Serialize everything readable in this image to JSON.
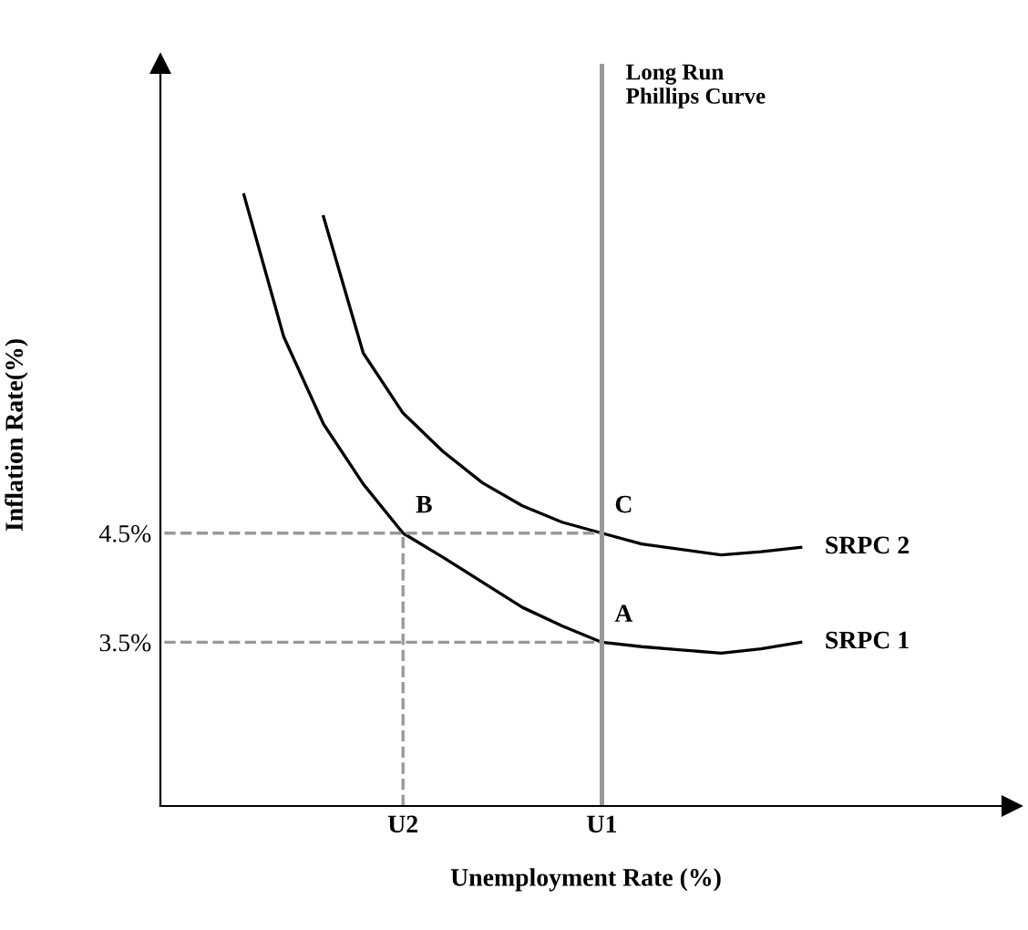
{
  "chart_data": {
    "type": "line",
    "xlabel": "Unemployment Rate (%)",
    "ylabel": "Inflation Rate(%)",
    "categories": [
      null,
      null,
      null,
      null,
      null,
      null,
      "U2",
      null,
      null,
      null,
      null,
      "U1",
      null,
      null,
      null,
      null,
      null,
      null,
      null,
      null,
      null,
      null
    ],
    "ylim": [
      2,
      8.8
    ],
    "yticks": [
      {
        "value": 3.5,
        "label": "3.5%"
      },
      {
        "value": 4.5,
        "label": "4.5%"
      }
    ],
    "grid": false,
    "legend": false,
    "series": [
      {
        "name": "SRPC 1",
        "color": "#000000",
        "line_style": "solid",
        "values": [
          null,
          null,
          7.6,
          6.3,
          5.5,
          4.95,
          4.5,
          4.28,
          4.05,
          3.82,
          3.65,
          3.5,
          3.46,
          3.43,
          3.4,
          3.44,
          3.5,
          null,
          null,
          null,
          null,
          null
        ]
      },
      {
        "name": "SRPC 2",
        "color": "#000000",
        "line_style": "solid",
        "values": [
          null,
          null,
          null,
          null,
          7.4,
          6.15,
          5.6,
          5.25,
          4.96,
          4.75,
          4.6,
          4.5,
          4.4,
          4.35,
          4.3,
          4.33,
          4.37,
          null,
          null,
          null,
          null,
          null
        ]
      },
      {
        "color": "#999999",
        "line_style": "dashed",
        "values": [
          4.5,
          4.5,
          4.5,
          4.5,
          4.5,
          4.5,
          4.5,
          4.5,
          4.5,
          4.5,
          4.5,
          4.5,
          null,
          null,
          null,
          null,
          null,
          null,
          null,
          null,
          null,
          null
        ]
      },
      {
        "color": "#999999",
        "line_style": "dashed",
        "values": [
          3.5,
          3.5,
          3.5,
          3.5,
          3.5,
          3.5,
          3.5,
          3.5,
          3.5,
          3.5,
          3.5,
          3.5,
          null,
          null,
          null,
          null,
          null,
          null,
          null,
          null,
          null,
          null
        ]
      }
    ],
    "ref_lines": [
      {
        "axis": "x",
        "value": "U1",
        "label": "Long Run\nPhillips Curve",
        "color": "#999999",
        "line_style": "solid"
      },
      {
        "axis": "x",
        "value": "U2",
        "color": "#999999",
        "line_style": "dashed"
      }
    ],
    "annotations": [
      {
        "text": "B",
        "x": "U2",
        "y": 4.5
      },
      {
        "text": "C",
        "x": "U1",
        "y": 4.5
      },
      {
        "text": "A",
        "x": "U1",
        "y": 3.5
      }
    ]
  }
}
